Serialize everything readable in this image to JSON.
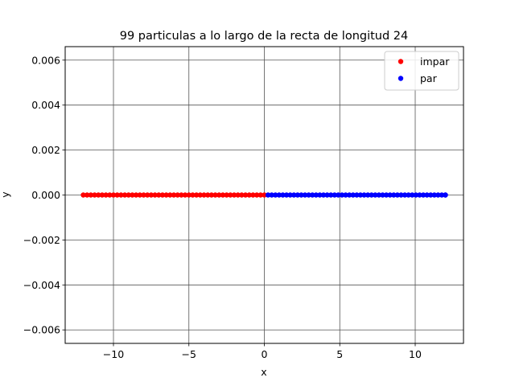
{
  "chart_data": {
    "type": "scatter",
    "title": "99 particulas a lo largo de la recta de longitud 24",
    "xlabel": "x",
    "ylabel": "y",
    "xlim": [
      -13.2,
      13.2
    ],
    "ylim": [
      -0.0066,
      0.0066
    ],
    "x_ticks": [
      -10,
      -5,
      0,
      5,
      10
    ],
    "x_tick_labels": [
      "−10",
      "−5",
      "0",
      "5",
      "10"
    ],
    "y_ticks": [
      -0.006,
      -0.004,
      -0.002,
      0.0,
      0.002,
      0.004,
      0.006
    ],
    "y_tick_labels": [
      "−0.006",
      "−0.004",
      "−0.002",
      "0.000",
      "0.002",
      "0.004",
      "0.006"
    ],
    "grid": true,
    "legend_position": "top-right",
    "series": [
      {
        "name": "impar",
        "color": "#ff0000",
        "x": [
          -12.0,
          -11.75,
          -11.5,
          -11.25,
          -11.0,
          -10.75,
          -10.5,
          -10.25,
          -10.0,
          -9.75,
          -9.5,
          -9.25,
          -9.0,
          -8.75,
          -8.5,
          -8.25,
          -8.0,
          -7.75,
          -7.5,
          -7.25,
          -7.0,
          -6.75,
          -6.5,
          -6.25,
          -6.0,
          -5.75,
          -5.5,
          -5.25,
          -5.0,
          -4.75,
          -4.5,
          -4.25,
          -4.0,
          -3.75,
          -3.5,
          -3.25,
          -3.0,
          -2.75,
          -2.5,
          -2.25,
          -2.0,
          -1.75,
          -1.5,
          -1.25,
          -1.0,
          -0.75,
          -0.5,
          -0.25,
          0.0
        ],
        "y": [
          0,
          0,
          0,
          0,
          0,
          0,
          0,
          0,
          0,
          0,
          0,
          0,
          0,
          0,
          0,
          0,
          0,
          0,
          0,
          0,
          0,
          0,
          0,
          0,
          0,
          0,
          0,
          0,
          0,
          0,
          0,
          0,
          0,
          0,
          0,
          0,
          0,
          0,
          0,
          0,
          0,
          0,
          0,
          0,
          0,
          0,
          0,
          0,
          0
        ]
      },
      {
        "name": "par",
        "color": "#0000ff",
        "x": [
          0.245,
          0.49,
          0.735,
          0.98,
          1.225,
          1.47,
          1.715,
          1.96,
          2.205,
          2.45,
          2.695,
          2.94,
          3.185,
          3.43,
          3.675,
          3.92,
          4.165,
          4.41,
          4.655,
          4.9,
          5.145,
          5.39,
          5.635,
          5.88,
          6.125,
          6.37,
          6.615,
          6.86,
          7.105,
          7.35,
          7.595,
          7.84,
          8.085,
          8.33,
          8.575,
          8.82,
          9.065,
          9.31,
          9.555,
          9.8,
          10.045,
          10.29,
          10.535,
          10.78,
          11.025,
          11.27,
          11.515,
          11.76,
          12.0,
          12.0
        ],
        "y": [
          0,
          0,
          0,
          0,
          0,
          0,
          0,
          0,
          0,
          0,
          0,
          0,
          0,
          0,
          0,
          0,
          0,
          0,
          0,
          0,
          0,
          0,
          0,
          0,
          0,
          0,
          0,
          0,
          0,
          0,
          0,
          0,
          0,
          0,
          0,
          0,
          0,
          0,
          0,
          0,
          0,
          0,
          0,
          0,
          0,
          0,
          0,
          0,
          0,
          0
        ]
      }
    ]
  }
}
